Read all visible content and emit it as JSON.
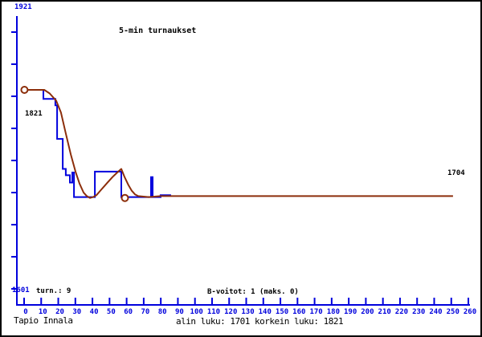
{
  "window": {
    "background": "#ffffff",
    "border_color": "#000000"
  },
  "colors": {
    "axis": "#0000dd",
    "rating_line": "#0000dd",
    "average_line": "#8c2e0b",
    "blue_text": "#0000dd",
    "black_text": "#000000",
    "marker_fill": "#ffffff"
  },
  "labels": {
    "title": "5-min turnaukset",
    "y_top": "1921",
    "start_value": "1821",
    "final_value": "1704",
    "y_bottom": "1601",
    "tournaments": "turn.: 9",
    "b_wins": "B-voitot: 1 (maks. 0)",
    "player": "Tapio Innala",
    "summary": "alin luku: 1701 korkein luku: 1821"
  },
  "chart_data": {
    "type": "line",
    "title": "5-min turnaukset",
    "player": "Tapio Innala",
    "stats": {
      "tournaments": 9,
      "b_wins": 1,
      "b_wins_max": 0,
      "lowest_rating": 1701,
      "highest_rating": 1821,
      "start_rating": 1821,
      "final_rating": 1704
    },
    "x_axis": {
      "min": 0,
      "max": 260,
      "tick_step": 10,
      "tick_values": [
        0,
        10,
        20,
        30,
        40,
        50,
        60,
        70,
        80,
        90,
        100,
        110,
        120,
        130,
        140,
        150,
        160,
        170,
        180,
        190,
        200,
        210,
        220,
        230,
        240,
        250,
        260
      ]
    },
    "y_axis": {
      "top_label": 1921,
      "bottom_label": 1601,
      "tick_count": 9
    },
    "grid": false,
    "legend": false,
    "series": [
      {
        "name": "rating",
        "color": "#0000dd",
        "style": "step",
        "points": [
          [
            0,
            1821
          ],
          [
            11.3,
            1821
          ],
          [
            11.3,
            1811
          ],
          [
            18.3,
            1811
          ],
          [
            18.3,
            1804
          ],
          [
            19.3,
            1804
          ],
          [
            19.3,
            1767
          ],
          [
            22.6,
            1767
          ],
          [
            22.6,
            1734
          ],
          [
            24.4,
            1734
          ],
          [
            24.4,
            1727
          ],
          [
            26.8,
            1727
          ],
          [
            26.8,
            1719
          ],
          [
            28.2,
            1719
          ],
          [
            28.2,
            1730
          ],
          [
            29.2,
            1730
          ],
          [
            29.2,
            1703
          ],
          [
            41.4,
            1703
          ],
          [
            41.4,
            1731
          ],
          [
            56.9,
            1731
          ],
          [
            56.9,
            1703
          ],
          [
            74.3,
            1703
          ],
          [
            74.3,
            1725
          ],
          [
            75.2,
            1725
          ],
          [
            75.2,
            1703
          ],
          [
            79.9,
            1703
          ],
          [
            79.9,
            1705
          ],
          [
            86,
            1705
          ]
        ]
      },
      {
        "name": "average",
        "color": "#8c2e0b",
        "style": "smooth",
        "points": [
          [
            0,
            1821
          ],
          [
            11.8,
            1821
          ],
          [
            15,
            1817
          ],
          [
            18.8,
            1809
          ],
          [
            21.6,
            1796
          ],
          [
            24.4,
            1773
          ],
          [
            27.3,
            1750
          ],
          [
            30.1,
            1731
          ],
          [
            32.4,
            1718
          ],
          [
            34.8,
            1708
          ],
          [
            36.7,
            1704
          ],
          [
            38.6,
            1702
          ],
          [
            40.4,
            1703
          ],
          [
            42.3,
            1705
          ],
          [
            45.1,
            1711
          ],
          [
            48.4,
            1718
          ],
          [
            51.7,
            1725
          ],
          [
            54.5,
            1730
          ],
          [
            56.9,
            1734
          ],
          [
            58.8,
            1725
          ],
          [
            61.1,
            1716
          ],
          [
            63,
            1710
          ],
          [
            64.9,
            1706
          ],
          [
            66.8,
            1704
          ],
          [
            72.9,
            1703
          ],
          [
            79.9,
            1704
          ],
          [
            86,
            1704
          ],
          [
            251,
            1704
          ]
        ]
      }
    ],
    "markers": [
      [
        0.2,
        1821
      ],
      [
        59,
        1702
      ]
    ]
  }
}
